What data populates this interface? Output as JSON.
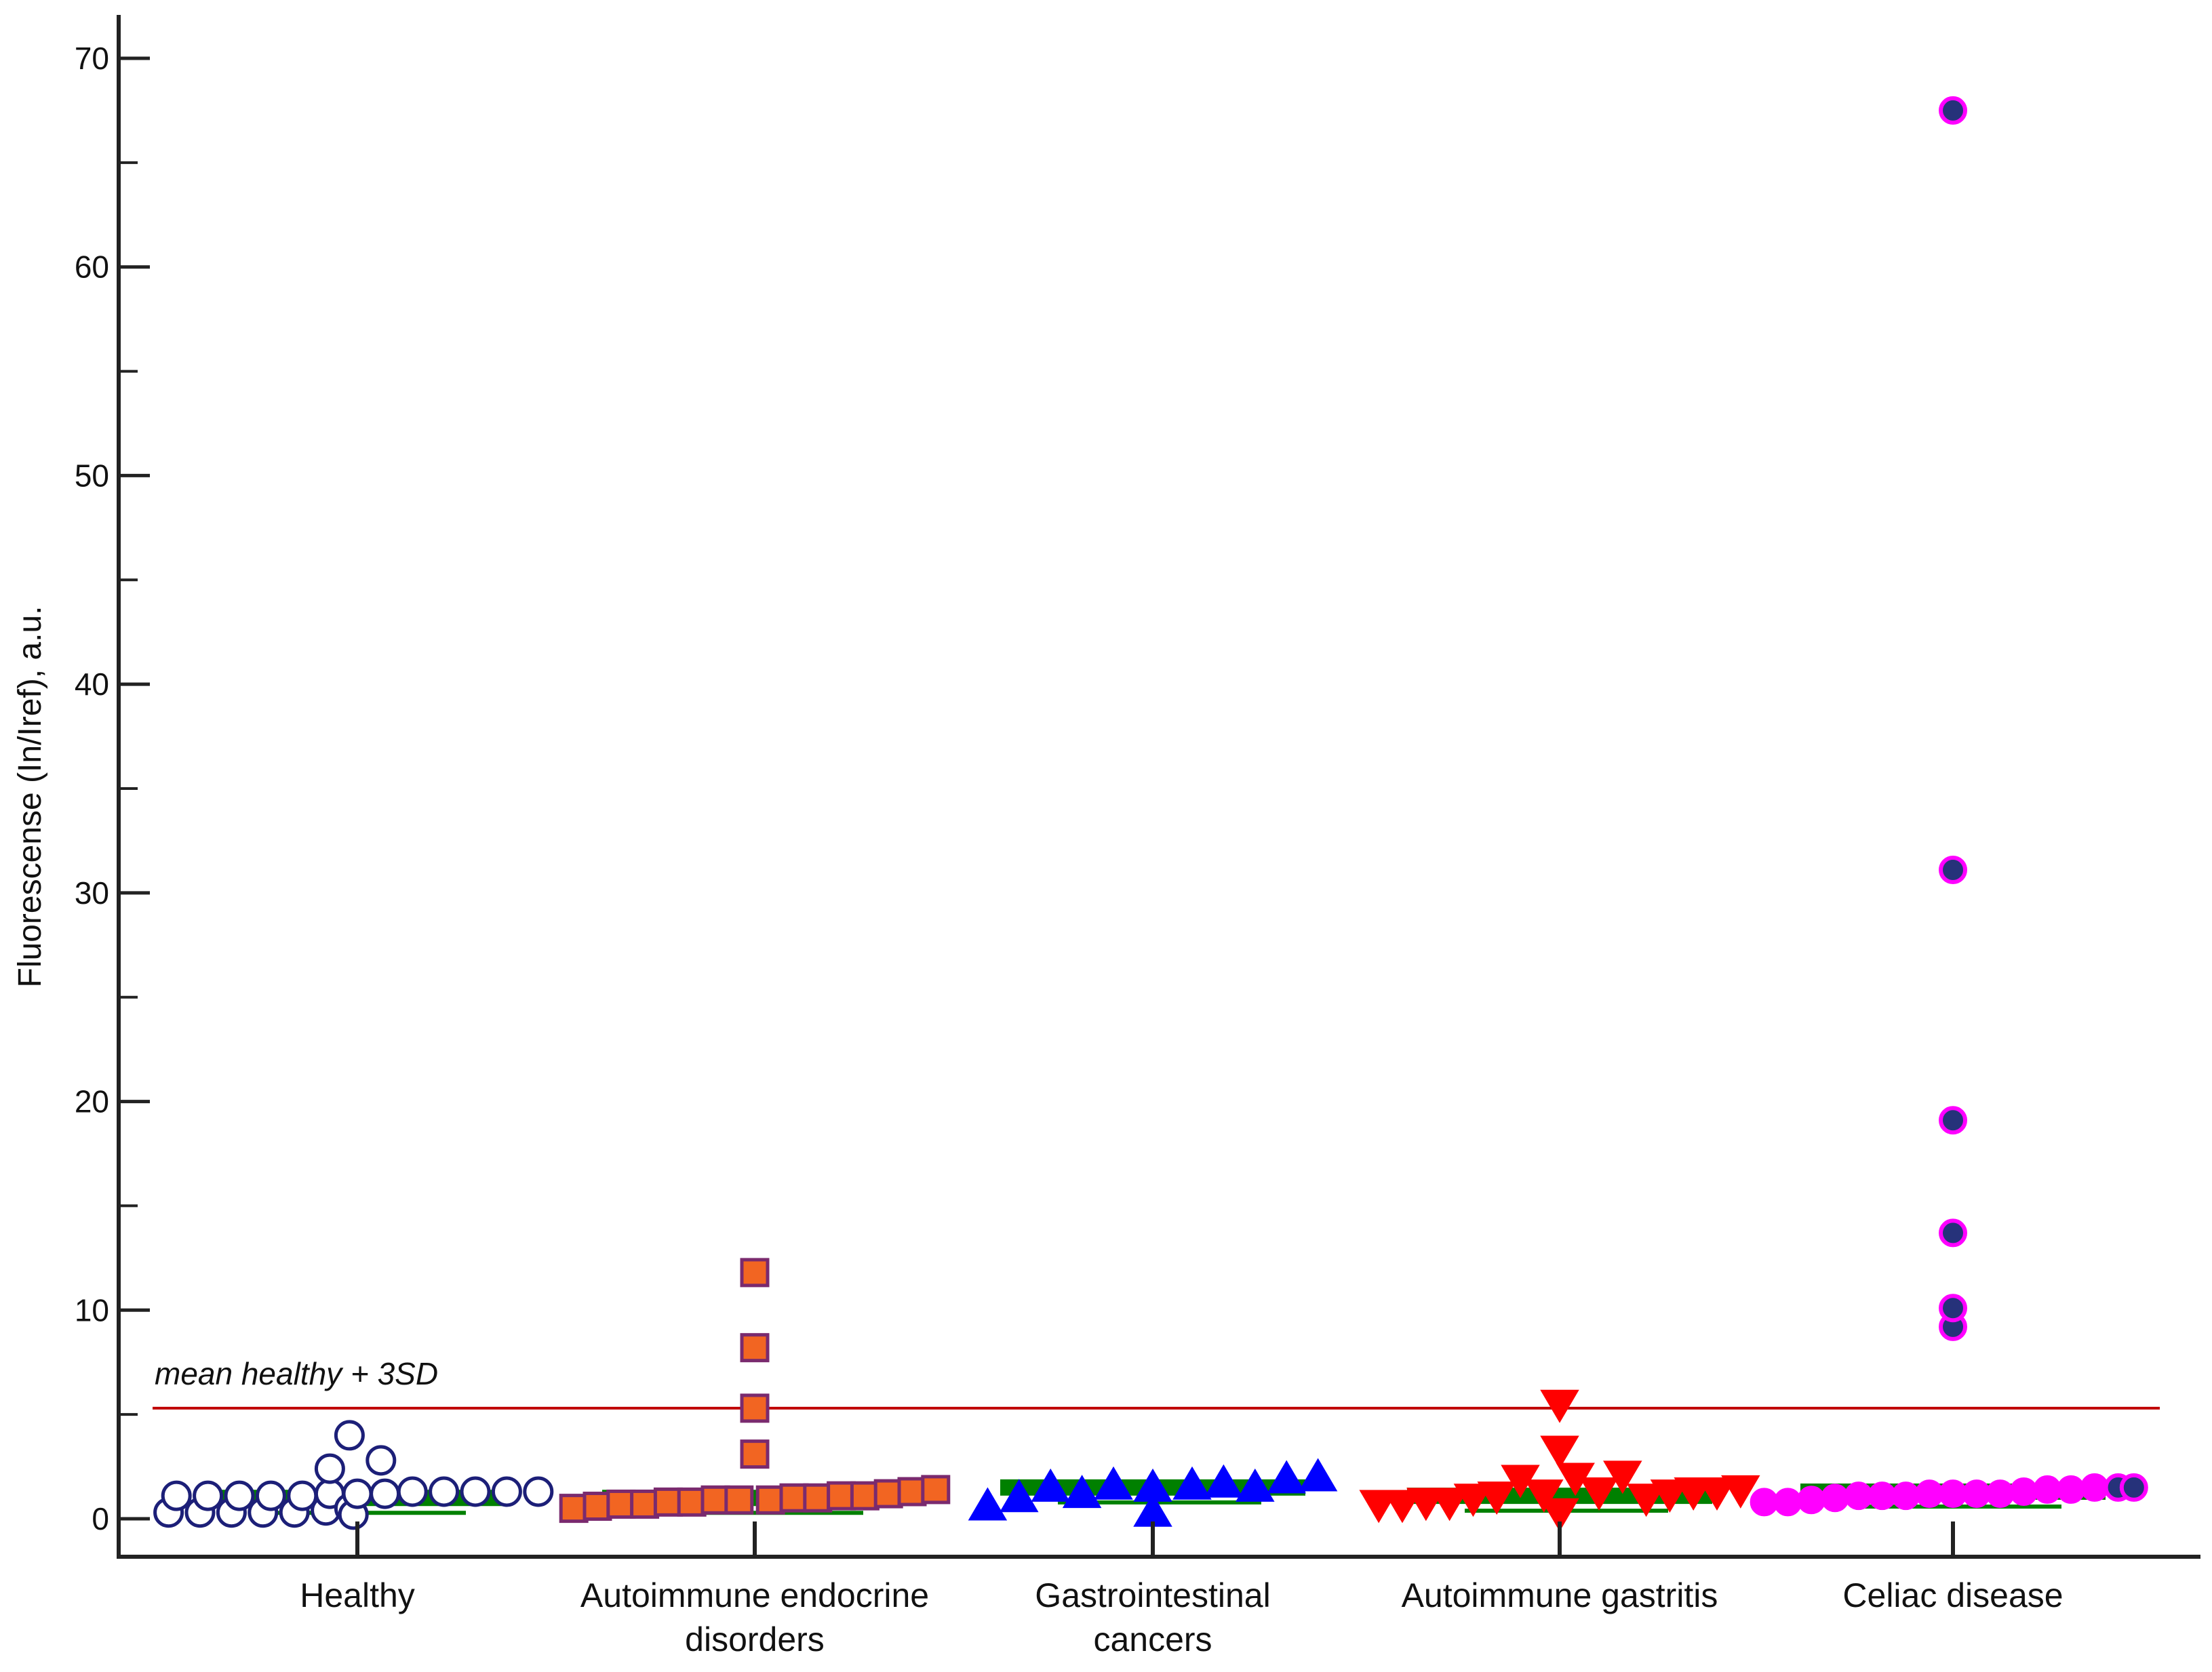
{
  "chart_data": {
    "type": "scatter",
    "title": "",
    "xlabel": "",
    "ylabel": "Fluorescense (In/Iref), a.u.",
    "ylim": [
      -2,
      72
    ],
    "yticks": [
      0,
      10,
      20,
      30,
      40,
      50,
      60,
      70
    ],
    "yminor_ticks": [
      5,
      15,
      25,
      35,
      45,
      55,
      65
    ],
    "grid": false,
    "categories": [
      {
        "lines": [
          "Healthy"
        ]
      },
      {
        "lines": [
          "Autoimmune endocrine",
          "disorders"
        ]
      },
      {
        "lines": [
          "Gastrointestinal",
          "cancers"
        ]
      },
      {
        "lines": [
          "Autoimmune gastritis"
        ]
      },
      {
        "lines": [
          "Celiac disease"
        ]
      }
    ],
    "reference_line": {
      "label": "mean healthy + 3SD",
      "value": 5.3,
      "color": "#c00000"
    },
    "series": [
      {
        "name": "Healthy",
        "marker": "circle-open",
        "stroke": "#1c1f78",
        "fill": "#ffffff",
        "mean": 1.0,
        "points": [
          {
            "dx": -0.24,
            "y": 0.3
          },
          {
            "dx": -0.23,
            "y": 1.1
          },
          {
            "dx": -0.2,
            "y": 0.3
          },
          {
            "dx": -0.19,
            "y": 1.1
          },
          {
            "dx": -0.16,
            "y": 0.3
          },
          {
            "dx": -0.15,
            "y": 1.1
          },
          {
            "dx": -0.12,
            "y": 0.3
          },
          {
            "dx": -0.11,
            "y": 1.1
          },
          {
            "dx": -0.08,
            "y": 0.3
          },
          {
            "dx": -0.07,
            "y": 1.1
          },
          {
            "dx": -0.04,
            "y": 0.4
          },
          {
            "dx": -0.035,
            "y": 1.2
          },
          {
            "dx": -0.035,
            "y": 2.4
          },
          {
            "dx": -0.01,
            "y": 0.5
          },
          {
            "dx": -0.005,
            "y": 0.2
          },
          {
            "dx": -0.01,
            "y": 4.0
          },
          {
            "dx": 0.0,
            "y": 1.2
          },
          {
            "dx": 0.03,
            "y": 2.8
          },
          {
            "dx": 0.035,
            "y": 1.2
          },
          {
            "dx": 0.07,
            "y": 1.3
          },
          {
            "dx": 0.11,
            "y": 1.3
          },
          {
            "dx": 0.15,
            "y": 1.3
          },
          {
            "dx": 0.19,
            "y": 1.3
          },
          {
            "dx": 0.23,
            "y": 1.3
          }
        ]
      },
      {
        "name": "Autoimmune endocrine disorders",
        "marker": "square",
        "stroke": "#7a2a6e",
        "fill": "#f26522",
        "mean": 1.0,
        "points": [
          {
            "dx": -0.23,
            "y": 0.5
          },
          {
            "dx": -0.2,
            "y": 0.6
          },
          {
            "dx": -0.17,
            "y": 0.7
          },
          {
            "dx": -0.14,
            "y": 0.7
          },
          {
            "dx": -0.11,
            "y": 0.8
          },
          {
            "dx": -0.08,
            "y": 0.8
          },
          {
            "dx": -0.05,
            "y": 0.9
          },
          {
            "dx": -0.02,
            "y": 0.9
          },
          {
            "dx": 0.0,
            "y": 3.1
          },
          {
            "dx": 0.0,
            "y": 5.3
          },
          {
            "dx": 0.0,
            "y": 8.2
          },
          {
            "dx": 0.0,
            "y": 11.8
          },
          {
            "dx": 0.02,
            "y": 0.9
          },
          {
            "dx": 0.05,
            "y": 1.0
          },
          {
            "dx": 0.08,
            "y": 1.0
          },
          {
            "dx": 0.11,
            "y": 1.1
          },
          {
            "dx": 0.14,
            "y": 1.1
          },
          {
            "dx": 0.17,
            "y": 1.2
          },
          {
            "dx": 0.2,
            "y": 1.3
          },
          {
            "dx": 0.23,
            "y": 1.4
          }
        ]
      },
      {
        "name": "Gastrointestinal cancers",
        "marker": "triangle-up",
        "stroke": "#0000ff",
        "fill": "#0000ff",
        "mean": 1.5,
        "points": [
          {
            "dx": -0.21,
            "y": 0.6
          },
          {
            "dx": -0.17,
            "y": 1.0
          },
          {
            "dx": -0.13,
            "y": 1.5
          },
          {
            "dx": -0.09,
            "y": 1.2
          },
          {
            "dx": -0.05,
            "y": 1.6
          },
          {
            "dx": 0.0,
            "y": 0.3
          },
          {
            "dx": 0.0,
            "y": 1.5
          },
          {
            "dx": 0.05,
            "y": 1.6
          },
          {
            "dx": 0.09,
            "y": 1.7
          },
          {
            "dx": 0.13,
            "y": 1.5
          },
          {
            "dx": 0.17,
            "y": 1.9
          },
          {
            "dx": 0.21,
            "y": 2.0
          }
        ]
      },
      {
        "name": "Autoimmune gastritis",
        "marker": "triangle-down",
        "stroke": "#ff0000",
        "fill": "#ff0000",
        "mean": 1.1,
        "points": [
          {
            "dx": -0.23,
            "y": 0.7
          },
          {
            "dx": -0.2,
            "y": 0.7
          },
          {
            "dx": -0.17,
            "y": 0.8
          },
          {
            "dx": -0.14,
            "y": 0.8
          },
          {
            "dx": -0.11,
            "y": 1.0
          },
          {
            "dx": -0.08,
            "y": 1.1
          },
          {
            "dx": -0.05,
            "y": 1.9
          },
          {
            "dx": -0.02,
            "y": 1.2
          },
          {
            "dx": 0.0,
            "y": 0.3
          },
          {
            "dx": 0.0,
            "y": 3.3
          },
          {
            "dx": 0.0,
            "y": 5.5
          },
          {
            "dx": 0.02,
            "y": 2.0
          },
          {
            "dx": 0.05,
            "y": 1.3
          },
          {
            "dx": 0.08,
            "y": 2.1
          },
          {
            "dx": 0.11,
            "y": 1.0
          },
          {
            "dx": 0.14,
            "y": 1.2
          },
          {
            "dx": 0.17,
            "y": 1.3
          },
          {
            "dx": 0.2,
            "y": 1.3
          },
          {
            "dx": 0.23,
            "y": 1.4
          }
        ]
      },
      {
        "name": "Celiac disease",
        "marker": "circle-filled",
        "stroke": "#ff00ff",
        "fill": "#ff00ff",
        "highlight_fill": "#26327a",
        "mean": 1.3,
        "points": [
          {
            "dx": -0.24,
            "y": 0.8,
            "hl": false
          },
          {
            "dx": -0.21,
            "y": 0.8,
            "hl": false
          },
          {
            "dx": -0.18,
            "y": 0.9,
            "hl": false
          },
          {
            "dx": -0.15,
            "y": 1.0,
            "hl": false
          },
          {
            "dx": -0.12,
            "y": 1.1,
            "hl": false
          },
          {
            "dx": -0.09,
            "y": 1.1,
            "hl": false
          },
          {
            "dx": -0.06,
            "y": 1.1,
            "hl": false
          },
          {
            "dx": -0.03,
            "y": 1.2,
            "hl": false
          },
          {
            "dx": 0.0,
            "y": 1.2,
            "hl": false
          },
          {
            "dx": 0.03,
            "y": 1.2,
            "hl": false
          },
          {
            "dx": 0.06,
            "y": 1.2,
            "hl": false
          },
          {
            "dx": 0.09,
            "y": 1.3,
            "hl": false
          },
          {
            "dx": 0.12,
            "y": 1.4,
            "hl": false
          },
          {
            "dx": 0.15,
            "y": 1.4,
            "hl": false
          },
          {
            "dx": 0.18,
            "y": 1.5,
            "hl": false
          },
          {
            "dx": 0.21,
            "y": 1.5,
            "hl": true
          },
          {
            "dx": 0.23,
            "y": 1.5,
            "hl": true
          },
          {
            "dx": 0.0,
            "y": 9.2,
            "hl": true
          },
          {
            "dx": 0.0,
            "y": 10.1,
            "hl": true
          },
          {
            "dx": 0.0,
            "y": 13.7,
            "hl": true
          },
          {
            "dx": 0.0,
            "y": 19.1,
            "hl": true
          },
          {
            "dx": 0.0,
            "y": 31.1,
            "hl": true
          },
          {
            "dx": 0.0,
            "y": 67.5,
            "hl": true
          }
        ]
      }
    ],
    "mean_line_color": "#008000",
    "axis_color": "#222222"
  }
}
